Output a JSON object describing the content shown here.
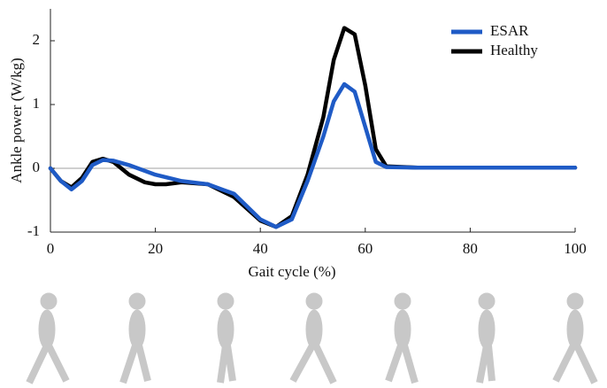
{
  "chart_data": {
    "type": "line",
    "x_label": "Gait cycle (%)",
    "y_label": "Ankle power (W/kg)",
    "x": [
      0,
      2,
      4,
      6,
      8,
      10,
      12,
      15,
      18,
      20,
      22,
      25,
      30,
      35,
      40,
      43,
      46,
      49,
      52,
      54,
      56,
      58,
      60,
      62,
      64,
      70,
      100
    ],
    "series": [
      {
        "name": "ESAR",
        "color": "#1f5bc6",
        "values": [
          0,
          -0.2,
          -0.33,
          -0.2,
          0.05,
          0.13,
          0.12,
          0.05,
          -0.04,
          -0.1,
          -0.14,
          -0.2,
          -0.25,
          -0.4,
          -0.8,
          -0.92,
          -0.8,
          -0.2,
          0.5,
          1.05,
          1.32,
          1.2,
          0.65,
          0.1,
          0.02,
          0.01,
          0.01
        ]
      },
      {
        "name": "Healthy",
        "color": "#000000",
        "values": [
          0,
          -0.2,
          -0.3,
          -0.15,
          0.1,
          0.15,
          0.1,
          -0.1,
          -0.22,
          -0.25,
          -0.25,
          -0.22,
          -0.25,
          -0.45,
          -0.82,
          -0.92,
          -0.75,
          -0.1,
          0.8,
          1.7,
          2.2,
          2.1,
          1.3,
          0.3,
          0.03,
          0.01,
          0.01
        ]
      }
    ],
    "xlim": [
      0,
      100
    ],
    "xticks": [
      0,
      20,
      40,
      60,
      80,
      100
    ],
    "ylim": [
      -1,
      2.5
    ],
    "yticks": [
      -1,
      0,
      1,
      2
    ],
    "zero_line": true,
    "legend": "upper-right"
  }
}
